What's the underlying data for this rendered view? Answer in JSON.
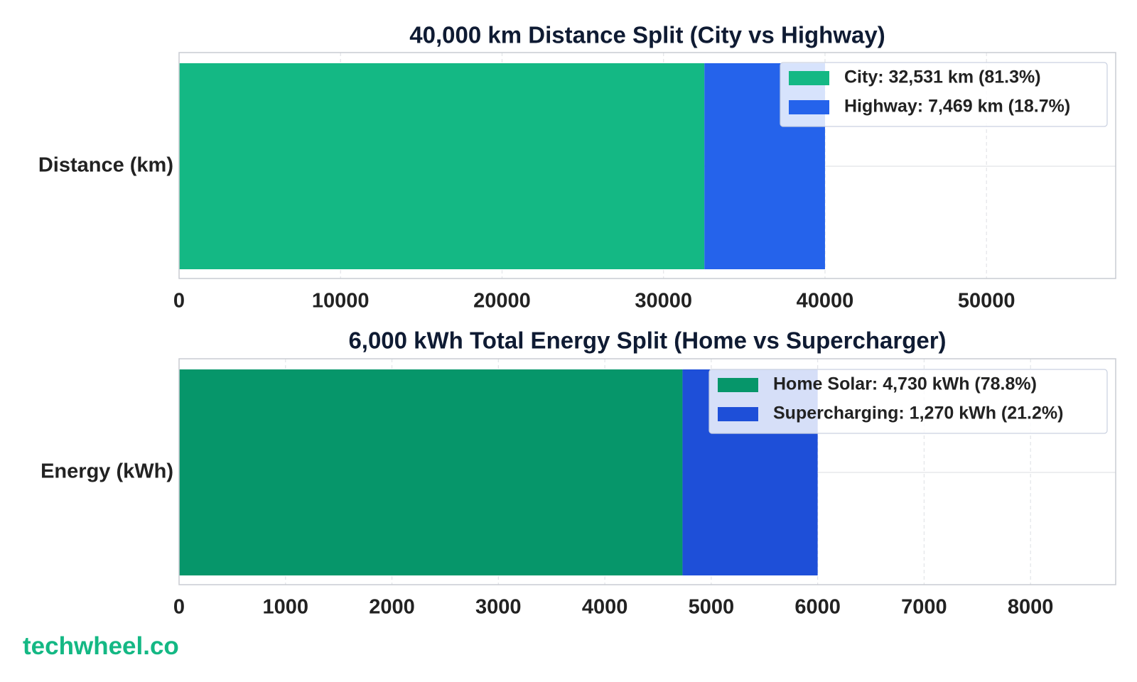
{
  "colors": {
    "title": "#0f1b33",
    "text": "#222222",
    "axis": "#c8ccd2",
    "grid": "#e2e4e8",
    "legend_bg": "rgba(255,255,255,0.82)",
    "legend_border": "#c9d0e0",
    "watermark": "#14b884"
  },
  "watermark": "techwheel.co",
  "chart_data": [
    {
      "type": "bar",
      "orientation": "horizontal",
      "stacked": true,
      "title": "40,000 km Distance Split (City vs Highway)",
      "categories": [
        "Distance (km)"
      ],
      "series": [
        {
          "name": "City: 32,531 km (81.3%)",
          "values": [
            32531
          ],
          "color": "#14b884"
        },
        {
          "name": "Highway: 7,469 km (18.7%)",
          "values": [
            7469
          ],
          "color": "#2563eb"
        }
      ],
      "xlim": [
        0,
        58000
      ],
      "xticks": [
        0,
        10000,
        20000,
        30000,
        40000,
        50000
      ],
      "xtick_labels": [
        "0",
        "10000",
        "20000",
        "30000",
        "40000",
        "50000"
      ],
      "grid": true,
      "legend_placement": "top-right"
    },
    {
      "type": "bar",
      "orientation": "horizontal",
      "stacked": true,
      "title": "6,000 kWh Total Energy Split (Home vs Supercharger)",
      "categories": [
        "Energy (kWh)"
      ],
      "series": [
        {
          "name": "Home Solar: 4,730 kWh (78.8%)",
          "values": [
            4730
          ],
          "color": "#06966a"
        },
        {
          "name": "Supercharging: 1,270 kWh (21.2%)",
          "values": [
            1270
          ],
          "color": "#1e4fd8"
        }
      ],
      "xlim": [
        0,
        8800
      ],
      "xticks": [
        0,
        1000,
        2000,
        3000,
        4000,
        5000,
        6000,
        7000,
        8000
      ],
      "xtick_labels": [
        "0",
        "1000",
        "2000",
        "3000",
        "4000",
        "5000",
        "6000",
        "7000",
        "8000"
      ],
      "grid": true,
      "legend_placement": "top-right"
    }
  ]
}
